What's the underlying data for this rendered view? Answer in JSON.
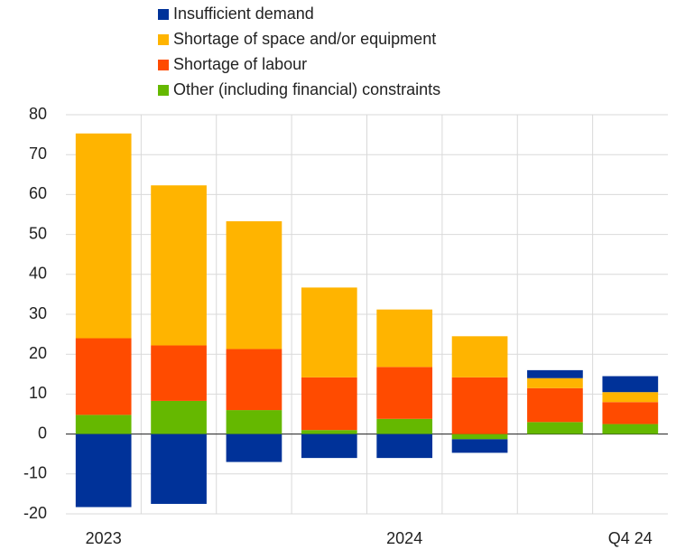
{
  "chart_data": {
    "type": "bar",
    "stacked": true,
    "categories": [
      "2023",
      null,
      null,
      null,
      "2024",
      null,
      null,
      "Q4 24"
    ],
    "series": [
      {
        "name": "Other (including financial) constraints",
        "color": "#65b800",
        "values": [
          4.8,
          8.3,
          6,
          1,
          3.8,
          -1.3,
          3,
          2.5
        ]
      },
      {
        "name": "Shortage of labour",
        "color": "#ff4b00",
        "values": [
          19.2,
          13.9,
          15.3,
          13.2,
          13,
          14.2,
          8.5,
          5.5
        ]
      },
      {
        "name": "Shortage of space and/or equipment",
        "color": "#ffb400",
        "values": [
          51.3,
          40.1,
          32,
          22.5,
          14.4,
          10.3,
          2.5,
          2.5
        ]
      },
      {
        "name": "Insufficient demand",
        "color": "#003299",
        "values": [
          -18.3,
          -17.5,
          -7,
          -6,
          -6,
          -3.4,
          2,
          4
        ]
      }
    ],
    "ylim": [
      -20,
      80
    ],
    "yticks": [
      -20,
      -10,
      0,
      10,
      20,
      30,
      40,
      50,
      60,
      70,
      80
    ],
    "grid": true
  }
}
